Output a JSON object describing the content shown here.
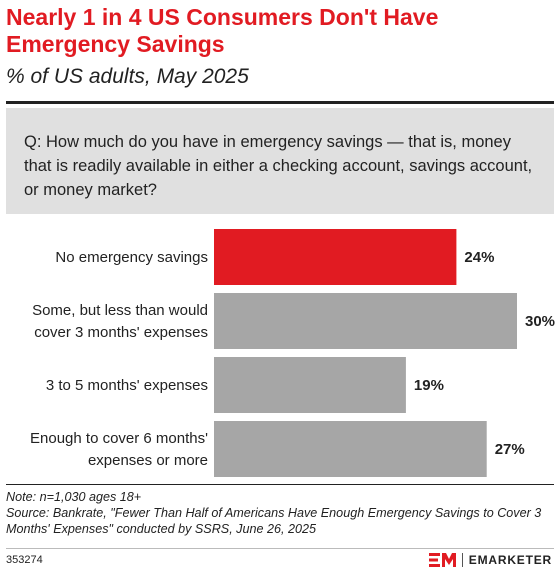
{
  "header": {
    "title": "Nearly 1 in 4 US Consumers Don't Have Emergency Savings",
    "subtitle": "% of US adults, May 2025"
  },
  "question": "Q: How much do you have in emergency savings — that is, money that is readily available in either a checking account, savings account, or money market?",
  "footer": {
    "note": "Note: n=1,030 ages 18+",
    "source": "Source: Bankrate, \"Fewer Than Half of Americans Have Enough Emergency Savings to Cover 3 Months' Expenses\" conducted by SSRS, June 26, 2025",
    "chart_id": "353274",
    "brand": "EMARKETER"
  },
  "colors": {
    "accent": "#e11b22",
    "bar": "#a6a6a6",
    "text": "#222222"
  },
  "chart_data": {
    "type": "bar",
    "orientation": "horizontal",
    "title": "Nearly 1 in 4 US Consumers Don't Have Emergency Savings",
    "subtitle": "% of US adults, May 2025",
    "categories": [
      "No emergency savings",
      "Some, but less than would cover 3 months' expenses",
      "3 to 5 months' expenses",
      "Enough to cover 6 months' expenses or more"
    ],
    "category_lines": [
      [
        "No emergency savings"
      ],
      [
        "Some, but less than would",
        "cover 3 months' expenses"
      ],
      [
        "3 to 5 months' expenses"
      ],
      [
        "Enough to cover 6 months'",
        "expenses or more"
      ]
    ],
    "values": [
      24,
      30,
      19,
      27
    ],
    "value_labels": [
      "24%",
      "30%",
      "19%",
      "27%"
    ],
    "highlight_index": 0,
    "xlim": [
      0,
      30
    ],
    "grid": false,
    "legend": "none"
  }
}
